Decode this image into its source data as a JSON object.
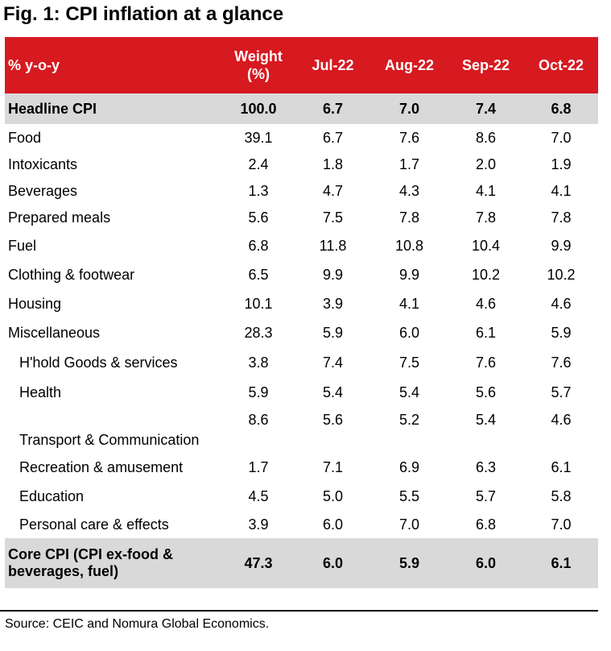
{
  "title": "Fig. 1: CPI inflation at a glance",
  "header": {
    "label": "% y-o-y",
    "weight": "Weight\n(%)",
    "cols": [
      "Jul-22",
      "Aug-22",
      "Sep-22",
      "Oct-22"
    ]
  },
  "rows": [
    {
      "label": "Headline CPI",
      "weight": "100.0",
      "v": [
        "6.7",
        "7.0",
        "7.4",
        "6.8"
      ]
    },
    {
      "label": "Food",
      "weight": "39.1",
      "v": [
        "6.7",
        "7.6",
        "8.6",
        "7.0"
      ]
    },
    {
      "label": "Intoxicants",
      "weight": "2.4",
      "v": [
        "1.8",
        "1.7",
        "2.0",
        "1.9"
      ]
    },
    {
      "label": "Beverages",
      "weight": "1.3",
      "v": [
        "4.7",
        "4.3",
        "4.1",
        "4.1"
      ]
    },
    {
      "label": "Prepared meals",
      "weight": "5.6",
      "v": [
        "7.5",
        "7.8",
        "7.8",
        "7.8"
      ]
    },
    {
      "label": "Fuel",
      "weight": "6.8",
      "v": [
        "11.8",
        "10.8",
        "10.4",
        "9.9"
      ]
    },
    {
      "label": "Clothing & footwear",
      "weight": "6.5",
      "v": [
        "9.9",
        "9.9",
        "10.2",
        "10.2"
      ]
    },
    {
      "label": "Housing",
      "weight": "10.1",
      "v": [
        "3.9",
        "4.1",
        "4.6",
        "4.6"
      ]
    },
    {
      "label": "Miscellaneous",
      "weight": "28.3",
      "v": [
        "5.9",
        "6.0",
        "6.1",
        "5.9"
      ]
    },
    {
      "label": "H'hold Goods & services",
      "weight": "3.8",
      "v": [
        "7.4",
        "7.5",
        "7.6",
        "7.6"
      ]
    },
    {
      "label": "Health",
      "weight": "5.9",
      "v": [
        "5.4",
        "5.4",
        "5.6",
        "5.7"
      ]
    },
    {
      "label": "Transport & Communication",
      "weight": "8.6",
      "v": [
        "5.6",
        "5.2",
        "5.4",
        "4.6"
      ]
    },
    {
      "label": "Recreation & amusement",
      "weight": "1.7",
      "v": [
        "7.1",
        "6.9",
        "6.3",
        "6.1"
      ]
    },
    {
      "label": "Education",
      "weight": "4.5",
      "v": [
        "5.0",
        "5.5",
        "5.7",
        "5.8"
      ]
    },
    {
      "label": "Personal care & effects",
      "weight": "3.9",
      "v": [
        "6.0",
        "7.0",
        "6.8",
        "7.0"
      ]
    },
    {
      "label": "Core CPI (CPI ex-food &\nbeverages, fuel)",
      "weight": "47.3",
      "v": [
        "6.0",
        "5.9",
        "6.0",
        "6.1"
      ]
    }
  ],
  "source": "Source: CEIC and Nomura Global Economics."
}
